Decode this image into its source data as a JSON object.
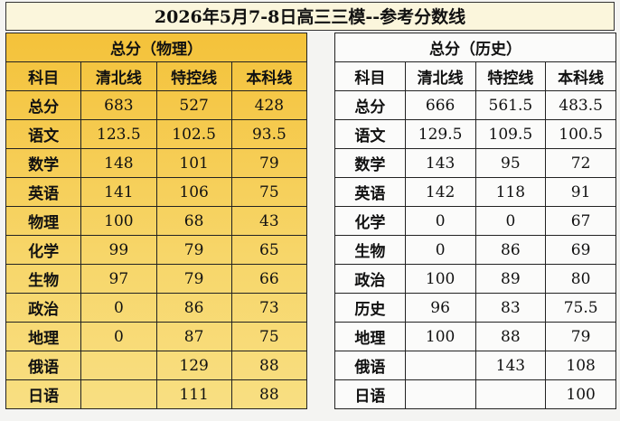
{
  "title": "2026年5月7-8日高三三模--参考分数线",
  "tables": [
    {
      "header": "总分（物理）",
      "columns": [
        "科目",
        "清北线",
        "特控线",
        "本科线"
      ],
      "rows": [
        [
          "总分",
          683,
          527,
          428
        ],
        [
          "语文",
          123.5,
          102.5,
          93.5
        ],
        [
          "数学",
          148,
          101,
          79
        ],
        [
          "英语",
          141,
          106,
          75
        ],
        [
          "物理",
          100,
          68,
          43
        ],
        [
          "化学",
          99,
          79,
          65
        ],
        [
          "生物",
          97,
          79,
          66
        ],
        [
          "政治",
          0,
          86,
          73
        ],
        [
          "地理",
          0,
          87,
          75
        ],
        [
          "俄语",
          null,
          129,
          88
        ],
        [
          "日语",
          null,
          111,
          88
        ]
      ]
    },
    {
      "header": "总分（历史）",
      "columns": [
        "科目",
        "清北线",
        "特控线",
        "本科线"
      ],
      "rows": [
        [
          "总分",
          666,
          561.5,
          483.5
        ],
        [
          "语文",
          129.5,
          109.5,
          100.5
        ],
        [
          "数学",
          143,
          95,
          72
        ],
        [
          "英语",
          142,
          118,
          91
        ],
        [
          "化学",
          0,
          0,
          67
        ],
        [
          "生物",
          0,
          86,
          69
        ],
        [
          "政治",
          100,
          89,
          80
        ],
        [
          "历史",
          96,
          83,
          75.5
        ],
        [
          "地理",
          100,
          88,
          79
        ],
        [
          "俄语",
          null,
          143,
          108
        ],
        [
          "日语",
          null,
          null,
          100
        ]
      ]
    }
  ]
}
